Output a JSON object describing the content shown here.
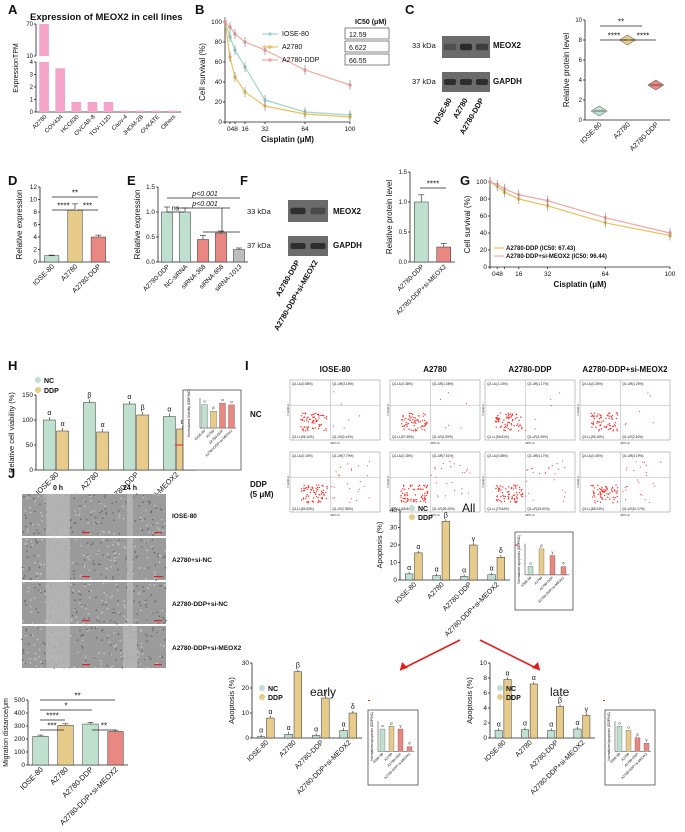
{
  "colors": {
    "pink": "#f4a3c9",
    "green": "#bfe0cf",
    "tan": "#e6cb8a",
    "salmon": "#e98882",
    "grey": "#bdbdbd",
    "red": "#e21f1f",
    "gel": "#3a3a3a"
  },
  "panel_letters": [
    "A",
    "B",
    "C",
    "D",
    "E",
    "F",
    "G",
    "H",
    "I",
    "J"
  ],
  "A": {
    "title": "Expression of MEOX2 in cell lines",
    "ylabel": "ExpressionTPM",
    "categories": [
      "A2780",
      "COV434",
      "HCC630",
      "OVCAR-8",
      "TOV-112D",
      "Caov-4",
      "JHOM-2B",
      "OVKATE",
      "Others"
    ],
    "values": [
      70,
      3.5,
      0.8,
      0.8,
      0.8,
      0.1,
      0.1,
      0.1,
      0.1
    ],
    "yticks_bottom": [
      "0",
      "1",
      "2",
      "3",
      "4"
    ],
    "yticks_top": [
      "10",
      "70"
    ]
  },
  "B": {
    "ylabel": "Cell survival (%)",
    "xlabel": "Cisplatin (μM)",
    "xticks": [
      "0",
      "4",
      "8",
      "16",
      "32",
      "64",
      "100"
    ],
    "yticks": [
      "0",
      "20",
      "40",
      "60",
      "80",
      "100"
    ],
    "ic50_header": "IC50 (μM)",
    "legend": [
      {
        "name": "IOSE-80",
        "ic50": "12.59"
      },
      {
        "name": "A2780",
        "ic50": "6.622"
      },
      {
        "name": "A2780-DDP",
        "ic50": "66.55"
      }
    ],
    "x": [
      0,
      4,
      8,
      16,
      32,
      64,
      100
    ],
    "series": [
      {
        "name": "IOSE-80",
        "values": [
          100,
          85,
          72,
          55,
          22,
          10,
          7
        ]
      },
      {
        "name": "A2780",
        "values": [
          100,
          65,
          45,
          30,
          16,
          8,
          5
        ]
      },
      {
        "name": "A2780-DDP",
        "values": [
          100,
          95,
          88,
          80,
          72,
          52,
          37
        ]
      }
    ]
  },
  "C": {
    "band1": "33 kDa",
    "band1_name": "MEOX2",
    "band2": "37 kDa",
    "band2_name": "GAPDH",
    "lanes": [
      "IOSE-80",
      "A2780",
      "A2780-DDP"
    ],
    "ylabel": "Relative protein level",
    "yticks": [
      "0",
      "2",
      "4",
      "6",
      "8",
      "10"
    ],
    "values": [
      0.9,
      8.0,
      3.5
    ],
    "sig": [
      "**",
      "****",
      "****"
    ]
  },
  "D": {
    "ylabel": "Relative expression",
    "categories": [
      "IOSE-80",
      "A2780",
      "A2780-DDP"
    ],
    "values": [
      1.0,
      8.3,
      4.0
    ],
    "yticks": [
      "0",
      "2",
      "4",
      "6",
      "8",
      "10",
      "12"
    ],
    "sig": [
      "**",
      "****",
      "***"
    ]
  },
  "E": {
    "ylabel": "Relative expression",
    "categories": [
      "A2780-DDP",
      "NC-siRNA",
      "siRNA-368",
      "siRNA-858",
      "siRNA-1013"
    ],
    "values": [
      1.0,
      1.0,
      0.45,
      0.58,
      0.25
    ],
    "yticks": [
      "0.0",
      "0.5",
      "1.0",
      "1.5"
    ],
    "sig": [
      "ns",
      "p<0.001",
      "p<0.001"
    ]
  },
  "F": {
    "band1": "33 kDa",
    "band1_name": "MEOX2",
    "band2": "37 kDa",
    "band2_name": "GAPDH",
    "lanes": [
      "A2780-DDP",
      "A2780-DDP+si-MEOX2"
    ],
    "ylabel": "Relative protein level",
    "yticks": [
      "0.0",
      "0.5",
      "1.0",
      "1.5"
    ],
    "categories": [
      "A2780-DDP",
      "A2780-DDP+si-MEOX2"
    ],
    "values": [
      1.0,
      0.25
    ],
    "sig": "****"
  },
  "G": {
    "ylabel": "Cell survival (%)",
    "xlabel": "Cisplatin (μM)",
    "xticks": [
      "0",
      "4",
      "8",
      "16",
      "32",
      "64",
      "100"
    ],
    "yticks": [
      "0",
      "20",
      "40",
      "60",
      "80",
      "100"
    ],
    "legend": [
      "A2780-DDP (IC50: 67.43)",
      "A2780-DDP+si-MEOX2 (IC50: 96.44)"
    ],
    "x": [
      0,
      4,
      8,
      16,
      32,
      64,
      100
    ],
    "series": [
      {
        "name": "A2780-DDP",
        "values": [
          100,
          95,
          88,
          80,
          72,
          52,
          37
        ]
      },
      {
        "name": "A2780-DDP+si-MEOX2",
        "values": [
          100,
          97,
          92,
          85,
          78,
          58,
          40
        ]
      }
    ]
  },
  "H": {
    "ylabel": "Relative cell viability (%)",
    "legend": [
      "NC",
      "DDP"
    ],
    "yticks": [
      "0",
      "50",
      "100",
      "150"
    ],
    "categories": [
      "IOSE-80",
      "A2780",
      "A2780-DDP",
      "A2780-DDP+si-MEOX2"
    ],
    "series": [
      {
        "name": "NC",
        "values": [
          100,
          135,
          132,
          107
        ]
      },
      {
        "name": "DDP",
        "values": [
          78,
          76,
          110,
          82
        ]
      }
    ],
    "marks": [
      "α",
      "α",
      "β",
      "α",
      "α",
      "β",
      "α",
      "α"
    ],
    "inset": {
      "ylabel": "Normalized Viability (DDP/NC)",
      "categories": [
        "IOSE-80",
        "A2780",
        "A2780-DDP",
        "A2780-DDP+si-MEOX2"
      ],
      "values": [
        0.78,
        0.56,
        0.83,
        0.77
      ],
      "marks": [
        "α",
        "β",
        "α",
        "α"
      ]
    }
  },
  "I": {
    "columns": [
      "IOSE-80",
      "A2780",
      "A2780-DDP",
      "A2780-DDP+si-MEOX2"
    ],
    "rows": [
      "NC",
      "DDP",
      "(5 μM)"
    ],
    "axis_x": "APC-A",
    "axis_y": "7-AAD-A",
    "quads": [
      [
        "Q1-UL(0.58%)",
        "Q1-UR(3.18%)",
        "Q1-LL(96.10%)",
        "Q1-LR(0.14%)"
      ],
      [
        "Q1-UL(0.38%)",
        "Q1-UR(1.08%)",
        "Q1-LL(97.45%)",
        "Q1-LR(1.09%)"
      ],
      [
        "Q1-UL(1.13%)",
        "Q1-UR(1.17%)",
        "Q1-LL(96.61%)",
        "Q1-LR(1.09%)"
      ],
      [
        "Q1-UL(0.25%)",
        "Q1-UR(1.25%)",
        "Q1-LL(96.16%)",
        "Q1-LR(2.34%)"
      ],
      [
        "Q1-UL(0.10%)",
        "Q1-UR(7.79%)",
        "Q1-LL(84.53%)",
        "Q1-LR(7.58%)"
      ],
      [
        "Q1-UL(0.15%)",
        "Q1-UR(7.61%)",
        "Q1-LL(65.84%)",
        "Q1-LR(26.40%)"
      ],
      [
        "Q1-UL(0.58%)",
        "Q1-UR(4.17%)",
        "Q1-LL(79.64%)",
        "Q1-LR(15.61%)"
      ],
      [
        "Q1-UL(0.40%)",
        "Q1-UR(3.19%)",
        "Q1-LL(86.24%)",
        "Q1-LR(10.17%)"
      ]
    ]
  },
  "I_all": {
    "title": "All",
    "ylabel": "Apoptosis (%)",
    "legend": [
      "NC",
      "DDP"
    ],
    "yticks": [
      "0",
      "10",
      "20",
      "30",
      "40"
    ],
    "categories": [
      "IOSE-80",
      "A2780",
      "A2780-DDP",
      "A2780-DDP+si-MEOX2"
    ],
    "series": [
      {
        "name": "NC",
        "values": [
          3.5,
          2.5,
          2.0,
          3.0
        ]
      },
      {
        "name": "DDP",
        "values": [
          15.5,
          33.5,
          20.0,
          13.0
        ]
      }
    ],
    "marks_nc": [
      "α",
      "α",
      "α",
      "α"
    ],
    "marks_ddp": [
      "α",
      "β",
      "γ",
      "δ"
    ],
    "inset": {
      "ylabel": "Normalized apoptosis (DDP/NC)",
      "values": [
        4.4,
        13.4,
        10.0,
        4.3
      ],
      "marks": [
        "α",
        "β",
        "γ",
        "δ"
      ]
    }
  },
  "I_early": {
    "title": "early",
    "ylabel": "Apoptosis (%)",
    "legend": [
      "NC",
      "DDP"
    ],
    "yticks": [
      "0",
      "10",
      "20",
      "30"
    ],
    "categories": [
      "IOSE-80",
      "A2780",
      "A2780-DDP",
      "A2780-DDP+si-MEOX2"
    ],
    "series": [
      {
        "name": "NC",
        "values": [
          0.5,
          1.5,
          1.0,
          3.0
        ]
      },
      {
        "name": "DDP",
        "values": [
          8.0,
          26.5,
          16.0,
          10.0
        ]
      }
    ],
    "marks_nc": [
      "α",
      "α",
      "α",
      "α"
    ],
    "marks_ddp": [
      "α",
      "β",
      "γ",
      "δ"
    ],
    "inset": {
      "ylabel": "Normalized apoptosis (DDP/NC)",
      "values": [
        16,
        18,
        16,
        3.3
      ],
      "marks": [
        "α",
        "β",
        "γ",
        "δ"
      ]
    }
  },
  "I_late": {
    "title": "late",
    "ylabel": "Apoptosis (%)",
    "legend": [
      "NC",
      "DDP"
    ],
    "yticks": [
      "0",
      "2",
      "4",
      "6",
      "8",
      "10"
    ],
    "categories": [
      "IOSE-80",
      "A2780",
      "A2780-DDP",
      "A2780-DDP+si-MEOX2"
    ],
    "series": [
      {
        "name": "NC",
        "values": [
          1.0,
          1.1,
          1.0,
          1.2
        ]
      },
      {
        "name": "DDP",
        "values": [
          7.8,
          7.2,
          4.2,
          3.0
        ]
      }
    ],
    "marks_nc": [
      "α",
      "α",
      "α",
      "α"
    ],
    "marks_ddp": [
      "α",
      "α",
      "β",
      "γ"
    ],
    "inset": {
      "ylabel": "Normalized apoptosis (DDP/NC)",
      "values": [
        7.8,
        6.5,
        4.2,
        2.5
      ],
      "marks": [
        "α",
        "α",
        "β",
        "γ"
      ]
    }
  },
  "J": {
    "times": [
      "0 h",
      "24 h"
    ],
    "rows": [
      "IOSE-80",
      "A2780+si-NC",
      "A2780-DDP+si-NC",
      "A2780-DDP+si-MEOX2"
    ],
    "ylabel": "Migration distance/μm",
    "yticks": [
      "0",
      "100",
      "200",
      "300",
      "400",
      "500"
    ],
    "categories": [
      "IOSE-80",
      "A2780",
      "A2780-DDP",
      "A2780-DDP+si-MEOX2"
    ],
    "values": [
      220,
      305,
      315,
      258
    ],
    "sig": [
      "**",
      "*",
      "****",
      "***",
      "**"
    ]
  }
}
